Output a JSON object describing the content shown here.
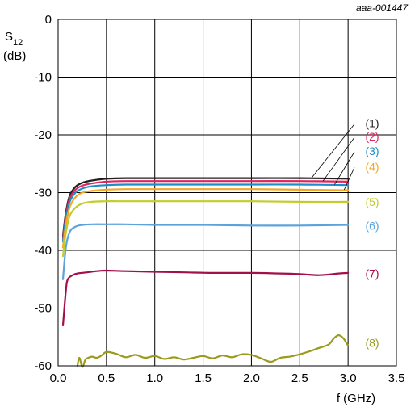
{
  "chart_data": {
    "type": "line",
    "reference": "aaa-001447",
    "ylabel_main": "S",
    "ylabel_sub": "12",
    "ylabel_unit": "(dB)",
    "xlabel": "f (GHz)",
    "xlim": [
      0,
      3.5
    ],
    "ylim": [
      -60,
      0
    ],
    "x_ticks": [
      "0.0",
      "0.5",
      "1.0",
      "1.5",
      "2.0",
      "2.5",
      "3.0",
      "3.5"
    ],
    "y_ticks": [
      "0",
      "-10",
      "-20",
      "-30",
      "-40",
      "-50",
      "-60"
    ],
    "grid": true,
    "series": [
      {
        "name": "(1)",
        "color": "#231f20",
        "x": [
          0.05,
          0.08,
          0.12,
          0.18,
          0.25,
          0.35,
          0.5,
          0.7,
          1.0,
          1.5,
          2.0,
          2.5,
          3.0
        ],
        "y": [
          -37.5,
          -33.5,
          -30.5,
          -29.0,
          -28.3,
          -27.9,
          -27.6,
          -27.5,
          -27.5,
          -27.5,
          -27.5,
          -27.5,
          -27.6
        ]
      },
      {
        "name": "(2)",
        "color": "#e0245e",
        "x": [
          0.05,
          0.08,
          0.12,
          0.18,
          0.25,
          0.35,
          0.5,
          0.7,
          1.0,
          1.5,
          2.0,
          2.5,
          3.0
        ],
        "y": [
          -38.0,
          -34.0,
          -31.0,
          -29.5,
          -28.8,
          -28.4,
          -28.1,
          -28.0,
          -28.0,
          -28.0,
          -28.0,
          -28.0,
          -28.1
        ]
      },
      {
        "name": "(3)",
        "color": "#1a8fc9",
        "x": [
          0.05,
          0.08,
          0.12,
          0.18,
          0.25,
          0.35,
          0.5,
          0.7,
          1.0,
          1.5,
          2.0,
          2.5,
          3.0
        ],
        "y": [
          -38.5,
          -34.5,
          -31.6,
          -30.0,
          -29.3,
          -28.9,
          -28.7,
          -28.6,
          -28.6,
          -28.6,
          -28.6,
          -28.6,
          -28.7
        ]
      },
      {
        "name": "(4)",
        "color": "#f5a623",
        "x": [
          0.05,
          0.08,
          0.12,
          0.18,
          0.25,
          0.35,
          0.5,
          0.7,
          1.0,
          1.5,
          2.0,
          2.5,
          3.0
        ],
        "y": [
          -39.5,
          -35.5,
          -32.5,
          -30.8,
          -30.0,
          -29.7,
          -29.5,
          -29.4,
          -29.4,
          -29.4,
          -29.4,
          -29.5,
          -29.6
        ]
      },
      {
        "name": "(5)",
        "color": "#c2cc2a",
        "x": [
          0.05,
          0.08,
          0.12,
          0.18,
          0.25,
          0.35,
          0.5,
          0.7,
          1.0,
          1.5,
          2.0,
          2.5,
          3.0
        ],
        "y": [
          -41.0,
          -37.0,
          -34.0,
          -32.6,
          -31.9,
          -31.6,
          -31.5,
          -31.5,
          -31.5,
          -31.5,
          -31.5,
          -31.6,
          -31.6
        ]
      },
      {
        "name": "(6)",
        "color": "#5ba3dc",
        "x": [
          0.05,
          0.08,
          0.12,
          0.18,
          0.25,
          0.35,
          0.5,
          0.7,
          1.0,
          1.5,
          2.0,
          2.5,
          3.0
        ],
        "y": [
          -45.0,
          -39.5,
          -36.8,
          -35.9,
          -35.6,
          -35.5,
          -35.5,
          -35.5,
          -35.6,
          -35.6,
          -35.7,
          -35.7,
          -35.6
        ]
      },
      {
        "name": "(7)",
        "color": "#a30f4b",
        "x": [
          0.05,
          0.08,
          0.1,
          0.15,
          0.2,
          0.3,
          0.4,
          0.5,
          0.7,
          1.0,
          1.3,
          1.6,
          2.0,
          2.3,
          2.5,
          2.7,
          2.9,
          3.0
        ],
        "y": [
          -53.0,
          -47.0,
          -45.0,
          -44.3,
          -44.0,
          -43.8,
          -43.6,
          -43.5,
          -43.6,
          -43.7,
          -43.8,
          -43.9,
          -43.9,
          -44.0,
          -44.1,
          -44.3,
          -44.0,
          -43.9
        ]
      },
      {
        "name": "(8)",
        "color": "#9a9a1c",
        "x": [
          0.2,
          0.22,
          0.25,
          0.28,
          0.3,
          0.35,
          0.4,
          0.45,
          0.5,
          0.6,
          0.7,
          0.8,
          0.9,
          1.0,
          1.1,
          1.2,
          1.3,
          1.4,
          1.5,
          1.6,
          1.7,
          1.8,
          1.9,
          2.0,
          2.1,
          2.2,
          2.3,
          2.4,
          2.5,
          2.6,
          2.7,
          2.8,
          2.85,
          2.9,
          2.95,
          3.0
        ],
        "y": [
          -60.0,
          -58.6,
          -60.2,
          -59.0,
          -58.7,
          -58.4,
          -58.6,
          -58.2,
          -57.6,
          -57.9,
          -58.5,
          -58.1,
          -58.6,
          -58.3,
          -58.8,
          -58.5,
          -58.9,
          -58.6,
          -58.3,
          -58.7,
          -58.2,
          -58.5,
          -58.0,
          -58.1,
          -58.7,
          -59.3,
          -58.6,
          -58.4,
          -58.0,
          -57.5,
          -56.9,
          -56.3,
          -55.3,
          -54.7,
          -55.2,
          -56.5
        ]
      }
    ],
    "label_positions": [
      {
        "text": "(1)",
        "y": -18.0,
        "target_x": 2.62,
        "target_y": -27.5
      },
      {
        "text": "(2)",
        "y": -20.3,
        "target_x": 2.74,
        "target_y": -28.0
      },
      {
        "text": "(3)",
        "y": -22.8,
        "target_x": 2.86,
        "target_y": -28.6
      },
      {
        "text": "(4)",
        "y": -25.5,
        "target_x": 2.96,
        "target_y": -29.5
      },
      {
        "text": "(5)",
        "y": -31.6,
        "target_x": null,
        "target_y": null
      },
      {
        "text": "(6)",
        "y": -35.7,
        "target_x": null,
        "target_y": null
      },
      {
        "text": "(7)",
        "y": -44.0,
        "target_x": null,
        "target_y": null
      },
      {
        "text": "(8)",
        "y": -56.0,
        "target_x": null,
        "target_y": null
      }
    ]
  }
}
